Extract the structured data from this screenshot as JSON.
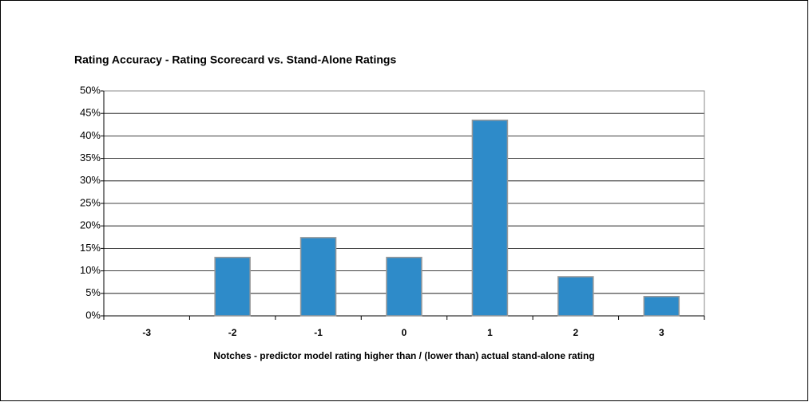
{
  "chart_data": {
    "type": "bar",
    "title": "Rating Accuracy - Rating Scorecard vs. Stand-Alone Ratings",
    "x_label": "Notches  - predictor model rating higher than / (lower than) actual stand-alone rating",
    "categories": [
      "-3",
      "-2",
      "-1",
      "0",
      "1",
      "2",
      "3"
    ],
    "values": [
      0,
      13,
      17.4,
      13,
      43.5,
      8.7,
      4.3
    ],
    "color": "#2e8bc9",
    "ylim": [
      0,
      50
    ],
    "yticks": [
      {
        "value": 0,
        "label": "0%"
      },
      {
        "value": 5,
        "label": "5%"
      },
      {
        "value": 10,
        "label": "10%"
      },
      {
        "value": 15,
        "label": "15%"
      },
      {
        "value": 20,
        "label": "20%"
      },
      {
        "value": 25,
        "label": "25%"
      },
      {
        "value": 30,
        "label": "30%"
      },
      {
        "value": 35,
        "label": "35%"
      },
      {
        "value": 40,
        "label": "40%"
      },
      {
        "value": 45,
        "label": "45%"
      },
      {
        "value": 50,
        "label": "50%"
      }
    ],
    "grid": true
  }
}
